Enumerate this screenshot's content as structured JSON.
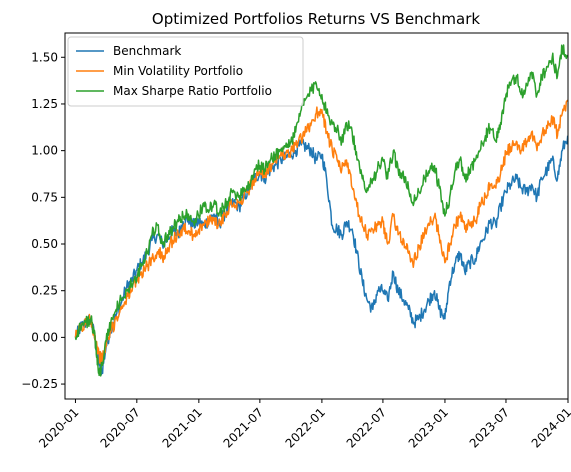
{
  "chart_data": {
    "type": "line",
    "title": "Optimized Portfolios Returns VS Benchmark",
    "xlabel": "",
    "ylabel": "",
    "xlim": [
      "2019-12-01",
      "2024-01-01"
    ],
    "ylim": [
      -0.33,
      1.63
    ],
    "xticks": [
      "2020-01",
      "2020-07",
      "2021-01",
      "2021-07",
      "2022-01",
      "2022-07",
      "2023-01",
      "2023-07",
      "2024-01"
    ],
    "yticks": [
      "−0.25",
      "0.00",
      "0.25",
      "0.50",
      "0.75",
      "1.00",
      "1.25",
      "1.50"
    ],
    "grid": false,
    "legend_position": "upper-left",
    "series": [
      {
        "name": "Benchmark",
        "color": "#1f77b4",
        "x": [
          "2020-01-01",
          "2020-01-15",
          "2020-02-01",
          "2020-02-15",
          "2020-02-25",
          "2020-03-05",
          "2020-03-12",
          "2020-03-20",
          "2020-04-01",
          "2020-04-15",
          "2020-05-01",
          "2020-05-15",
          "2020-06-01",
          "2020-06-15",
          "2020-07-01",
          "2020-07-15",
          "2020-08-01",
          "2020-08-15",
          "2020-09-01",
          "2020-09-15",
          "2020-10-01",
          "2020-10-15",
          "2020-11-01",
          "2020-11-15",
          "2020-12-01",
          "2020-12-15",
          "2021-01-01",
          "2021-01-15",
          "2021-02-01",
          "2021-02-15",
          "2021-03-01",
          "2021-03-15",
          "2021-04-01",
          "2021-04-15",
          "2021-05-01",
          "2021-05-15",
          "2021-06-01",
          "2021-06-15",
          "2021-07-01",
          "2021-07-15",
          "2021-08-01",
          "2021-08-15",
          "2021-09-01",
          "2021-09-15",
          "2021-10-01",
          "2021-10-15",
          "2021-11-01",
          "2021-11-15",
          "2021-12-01",
          "2021-12-15",
          "2022-01-01",
          "2022-01-15",
          "2022-02-01",
          "2022-02-15",
          "2022-03-01",
          "2022-03-15",
          "2022-04-01",
          "2022-04-15",
          "2022-05-01",
          "2022-05-15",
          "2022-06-01",
          "2022-06-15",
          "2022-07-01",
          "2022-07-15",
          "2022-08-01",
          "2022-08-15",
          "2022-09-01",
          "2022-09-15",
          "2022-10-01",
          "2022-10-15",
          "2022-11-01",
          "2022-11-15",
          "2022-12-01",
          "2022-12-15",
          "2023-01-01",
          "2023-01-15",
          "2023-02-01",
          "2023-02-15",
          "2023-03-01",
          "2023-03-15",
          "2023-04-01",
          "2023-04-15",
          "2023-05-01",
          "2023-05-15",
          "2023-06-01",
          "2023-06-15",
          "2023-07-01",
          "2023-07-15",
          "2023-08-01",
          "2023-08-15",
          "2023-09-01",
          "2023-09-15",
          "2023-10-01",
          "2023-10-15",
          "2023-11-01",
          "2023-11-15",
          "2023-12-01",
          "2023-12-15",
          "2023-12-31"
        ],
        "values": [
          0.0,
          0.05,
          0.08,
          0.1,
          0.02,
          -0.08,
          -0.15,
          -0.18,
          -0.05,
          0.05,
          0.12,
          0.18,
          0.27,
          0.3,
          0.36,
          0.4,
          0.45,
          0.52,
          0.55,
          0.5,
          0.53,
          0.57,
          0.55,
          0.62,
          0.63,
          0.6,
          0.62,
          0.6,
          0.63,
          0.66,
          0.6,
          0.65,
          0.7,
          0.72,
          0.7,
          0.75,
          0.8,
          0.85,
          0.88,
          0.85,
          0.9,
          0.92,
          0.95,
          0.96,
          0.98,
          1.0,
          1.03,
          1.02,
          1.0,
          0.95,
          0.98,
          0.85,
          0.6,
          0.58,
          0.55,
          0.62,
          0.58,
          0.45,
          0.3,
          0.2,
          0.15,
          0.25,
          0.25,
          0.2,
          0.35,
          0.25,
          0.2,
          0.15,
          0.08,
          0.1,
          0.15,
          0.2,
          0.25,
          0.15,
          0.1,
          0.3,
          0.4,
          0.45,
          0.35,
          0.4,
          0.42,
          0.5,
          0.55,
          0.62,
          0.6,
          0.7,
          0.78,
          0.82,
          0.85,
          0.8,
          0.78,
          0.82,
          0.75,
          0.85,
          0.9,
          0.95,
          0.85,
          1.0,
          1.08
        ]
      },
      {
        "name": "Min Volatility Portfolio",
        "color": "#ff7f0e",
        "x": [
          "2020-01-01",
          "2020-01-15",
          "2020-02-01",
          "2020-02-15",
          "2020-02-25",
          "2020-03-05",
          "2020-03-12",
          "2020-03-20",
          "2020-04-01",
          "2020-04-15",
          "2020-05-01",
          "2020-05-15",
          "2020-06-01",
          "2020-06-15",
          "2020-07-01",
          "2020-07-15",
          "2020-08-01",
          "2020-08-15",
          "2020-09-01",
          "2020-09-15",
          "2020-10-01",
          "2020-10-15",
          "2020-11-01",
          "2020-11-15",
          "2020-12-01",
          "2020-12-15",
          "2021-01-01",
          "2021-01-15",
          "2021-02-01",
          "2021-02-15",
          "2021-03-01",
          "2021-03-15",
          "2021-04-01",
          "2021-04-15",
          "2021-05-01",
          "2021-05-15",
          "2021-06-01",
          "2021-06-15",
          "2021-07-01",
          "2021-07-15",
          "2021-08-01",
          "2021-08-15",
          "2021-09-01",
          "2021-09-15",
          "2021-10-01",
          "2021-10-15",
          "2021-11-01",
          "2021-11-15",
          "2021-12-01",
          "2021-12-15",
          "2022-01-01",
          "2022-01-15",
          "2022-02-01",
          "2022-02-15",
          "2022-03-01",
          "2022-03-15",
          "2022-04-01",
          "2022-04-15",
          "2022-05-01",
          "2022-05-15",
          "2022-06-01",
          "2022-06-15",
          "2022-07-01",
          "2022-07-15",
          "2022-08-01",
          "2022-08-15",
          "2022-09-01",
          "2022-09-15",
          "2022-10-01",
          "2022-10-15",
          "2022-11-01",
          "2022-11-15",
          "2022-12-01",
          "2022-12-15",
          "2023-01-01",
          "2023-01-15",
          "2023-02-01",
          "2023-02-15",
          "2023-03-01",
          "2023-03-15",
          "2023-04-01",
          "2023-04-15",
          "2023-05-01",
          "2023-05-15",
          "2023-06-01",
          "2023-06-15",
          "2023-07-01",
          "2023-07-15",
          "2023-08-01",
          "2023-08-15",
          "2023-09-01",
          "2023-09-15",
          "2023-10-01",
          "2023-10-15",
          "2023-11-01",
          "2023-11-15",
          "2023-12-01",
          "2023-12-15",
          "2023-12-31"
        ],
        "values": [
          0.0,
          0.05,
          0.07,
          0.1,
          0.03,
          -0.05,
          -0.1,
          -0.12,
          -0.05,
          0.03,
          0.1,
          0.15,
          0.22,
          0.25,
          0.3,
          0.35,
          0.38,
          0.42,
          0.46,
          0.43,
          0.48,
          0.52,
          0.55,
          0.58,
          0.57,
          0.55,
          0.58,
          0.6,
          0.62,
          0.64,
          0.6,
          0.65,
          0.7,
          0.72,
          0.72,
          0.76,
          0.8,
          0.85,
          0.88,
          0.86,
          0.92,
          0.95,
          0.98,
          0.98,
          1.0,
          1.03,
          1.06,
          1.1,
          1.15,
          1.2,
          1.22,
          1.1,
          1.0,
          0.95,
          0.9,
          0.95,
          0.8,
          0.7,
          0.6,
          0.55,
          0.58,
          0.6,
          0.62,
          0.5,
          0.65,
          0.55,
          0.52,
          0.45,
          0.4,
          0.48,
          0.55,
          0.6,
          0.65,
          0.55,
          0.4,
          0.5,
          0.6,
          0.65,
          0.58,
          0.6,
          0.62,
          0.7,
          0.75,
          0.82,
          0.8,
          0.88,
          0.98,
          1.02,
          1.05,
          1.0,
          1.05,
          1.1,
          1.0,
          1.08,
          1.12,
          1.18,
          1.08,
          1.2,
          1.27
        ]
      },
      {
        "name": "Max Sharpe Ratio Portfolio",
        "color": "#2ca02c",
        "x": [
          "2020-01-01",
          "2020-01-15",
          "2020-02-01",
          "2020-02-15",
          "2020-02-25",
          "2020-03-05",
          "2020-03-12",
          "2020-03-20",
          "2020-04-01",
          "2020-04-15",
          "2020-05-01",
          "2020-05-15",
          "2020-06-01",
          "2020-06-15",
          "2020-07-01",
          "2020-07-15",
          "2020-08-01",
          "2020-08-15",
          "2020-09-01",
          "2020-09-15",
          "2020-10-01",
          "2020-10-15",
          "2020-11-01",
          "2020-11-15",
          "2020-12-01",
          "2020-12-15",
          "2021-01-01",
          "2021-01-15",
          "2021-02-01",
          "2021-02-15",
          "2021-03-01",
          "2021-03-15",
          "2021-04-01",
          "2021-04-15",
          "2021-05-01",
          "2021-05-15",
          "2021-06-01",
          "2021-06-15",
          "2021-07-01",
          "2021-07-15",
          "2021-08-01",
          "2021-08-15",
          "2021-09-01",
          "2021-09-15",
          "2021-10-01",
          "2021-10-15",
          "2021-11-01",
          "2021-11-15",
          "2021-12-01",
          "2021-12-15",
          "2022-01-01",
          "2022-01-15",
          "2022-02-01",
          "2022-02-15",
          "2022-03-01",
          "2022-03-15",
          "2022-04-01",
          "2022-04-15",
          "2022-05-01",
          "2022-05-15",
          "2022-06-01",
          "2022-06-15",
          "2022-07-01",
          "2022-07-15",
          "2022-08-01",
          "2022-08-15",
          "2022-09-01",
          "2022-09-15",
          "2022-10-01",
          "2022-10-15",
          "2022-11-01",
          "2022-11-15",
          "2022-12-01",
          "2022-12-15",
          "2023-01-01",
          "2023-01-15",
          "2023-02-01",
          "2023-02-15",
          "2023-03-01",
          "2023-03-15",
          "2023-04-01",
          "2023-04-15",
          "2023-05-01",
          "2023-05-15",
          "2023-06-01",
          "2023-06-15",
          "2023-07-01",
          "2023-07-15",
          "2023-08-01",
          "2023-08-15",
          "2023-09-01",
          "2023-09-15",
          "2023-10-01",
          "2023-10-15",
          "2023-11-01",
          "2023-11-15",
          "2023-12-01",
          "2023-12-15",
          "2023-12-31"
        ],
        "values": [
          0.0,
          0.06,
          0.08,
          0.1,
          0.02,
          -0.1,
          -0.2,
          -0.15,
          -0.02,
          0.08,
          0.15,
          0.2,
          0.25,
          0.28,
          0.32,
          0.38,
          0.45,
          0.55,
          0.6,
          0.5,
          0.55,
          0.58,
          0.62,
          0.65,
          0.66,
          0.62,
          0.65,
          0.72,
          0.68,
          0.72,
          0.65,
          0.7,
          0.75,
          0.78,
          0.76,
          0.8,
          0.82,
          0.9,
          0.92,
          0.9,
          0.95,
          0.98,
          1.0,
          1.02,
          1.05,
          1.1,
          1.22,
          1.28,
          1.32,
          1.36,
          1.3,
          1.2,
          1.15,
          1.12,
          1.05,
          1.15,
          1.1,
          0.95,
          0.85,
          0.8,
          0.85,
          0.9,
          0.95,
          0.85,
          1.0,
          0.9,
          0.85,
          0.8,
          0.72,
          0.78,
          0.85,
          0.88,
          0.92,
          0.8,
          0.65,
          0.75,
          0.9,
          0.95,
          0.85,
          0.9,
          0.95,
          1.0,
          1.08,
          1.12,
          1.05,
          1.15,
          1.3,
          1.35,
          1.4,
          1.3,
          1.35,
          1.42,
          1.3,
          1.4,
          1.45,
          1.5,
          1.4,
          1.55,
          1.51
        ]
      }
    ]
  }
}
